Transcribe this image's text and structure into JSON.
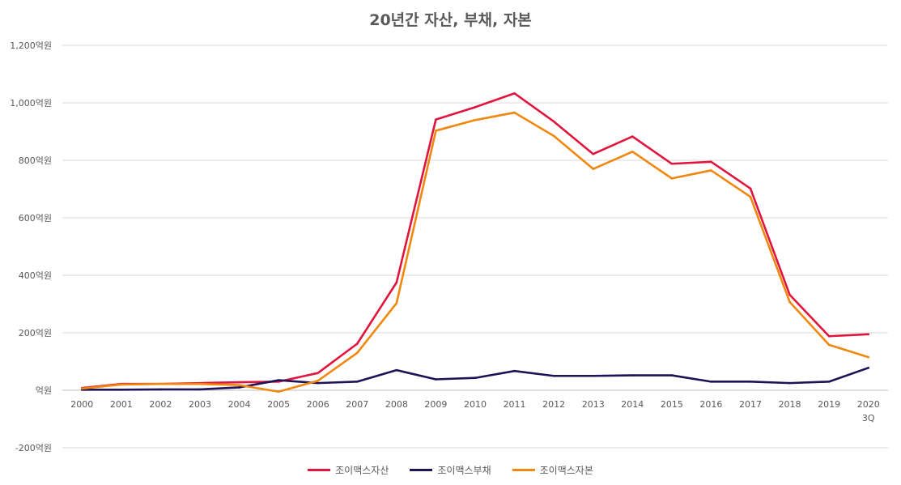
{
  "chart_data": {
    "type": "line",
    "title": "20년간 자산, 부채, 자본",
    "categories": [
      "2000",
      "2001",
      "2002",
      "2003",
      "2004",
      "2005",
      "2006",
      "2007",
      "2008",
      "2009",
      "2010",
      "2011",
      "2012",
      "2013",
      "2014",
      "2015",
      "2016",
      "2017",
      "2018",
      "2019",
      "2020\n3Q"
    ],
    "ylim": [
      -200,
      1200
    ],
    "yticks": [
      -200,
      0,
      200,
      400,
      600,
      800,
      1000,
      1200
    ],
    "ytick_labels": [
      "-200억원",
      "억원",
      "200억원",
      "400억원",
      "600억원",
      "800억원",
      "1,000억원",
      "1,200억원"
    ],
    "grid": true,
    "legend_position": "bottom",
    "series": [
      {
        "name": "조이맥스자산",
        "color": "#e0143c",
        "values": [
          8,
          22,
          22,
          25,
          28,
          30,
          60,
          162,
          375,
          942,
          985,
          1033,
          935,
          822,
          883,
          788,
          795,
          702,
          332,
          188,
          195
        ]
      },
      {
        "name": "조이맥스부채",
        "color": "#1f1257",
        "values": [
          2,
          2,
          3,
          3,
          10,
          35,
          25,
          30,
          70,
          38,
          43,
          67,
          50,
          50,
          52,
          52,
          30,
          30,
          25,
          30,
          78
        ]
      },
      {
        "name": "조이맥스자본",
        "color": "#f0870f",
        "values": [
          6,
          20,
          22,
          22,
          18,
          -5,
          33,
          130,
          303,
          903,
          940,
          966,
          885,
          770,
          830,
          737,
          765,
          673,
          307,
          158,
          115
        ]
      }
    ]
  }
}
